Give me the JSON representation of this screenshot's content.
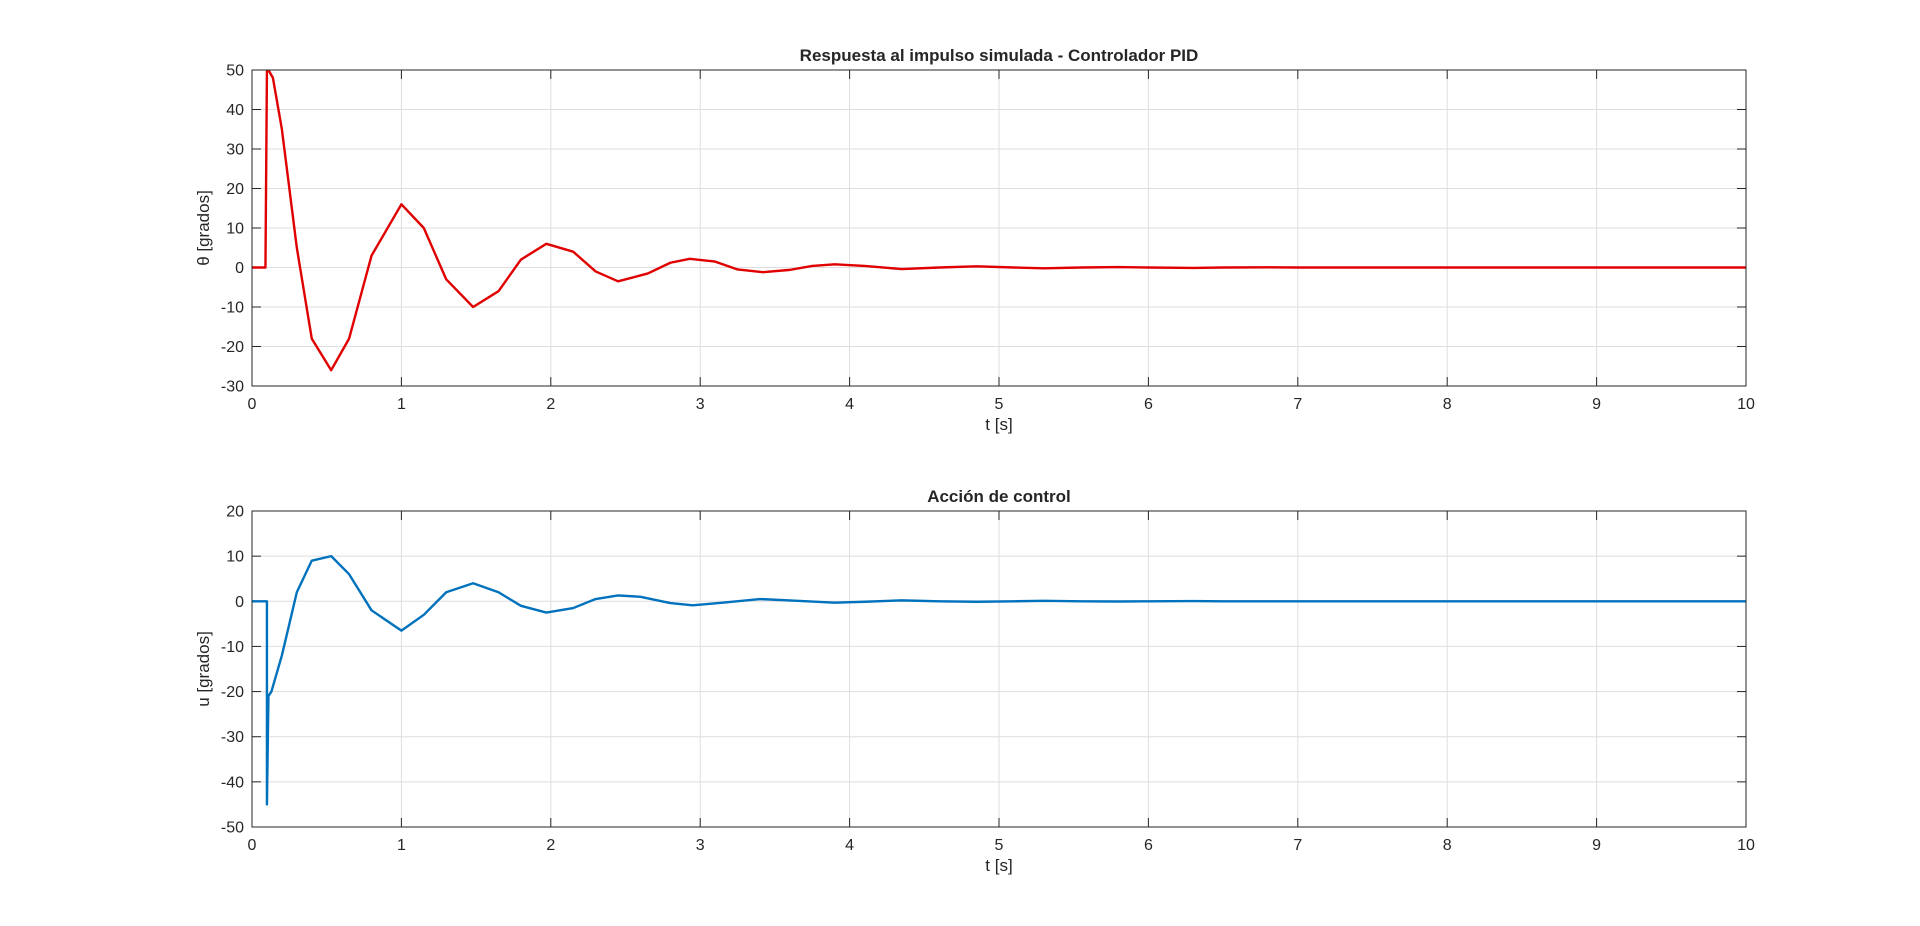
{
  "chart_data": [
    {
      "type": "line",
      "title": "Respuesta al impulso simulada - Controlador PID",
      "xlabel": "t [s]",
      "ylabel": "θ [grados]",
      "xlim": [
        0,
        10
      ],
      "ylim": [
        -30,
        50
      ],
      "xticks": [
        0,
        1,
        2,
        3,
        4,
        5,
        6,
        7,
        8,
        9,
        10
      ],
      "yticks": [
        -30,
        -20,
        -10,
        0,
        10,
        20,
        30,
        40,
        50
      ],
      "grid": true,
      "color": "#e00000",
      "series": [
        {
          "x": [
            0,
            0.09,
            0.1,
            0.11,
            0.14,
            0.2,
            0.3,
            0.4,
            0.53,
            0.65,
            0.8,
            1.0,
            1.15,
            1.3,
            1.48,
            1.65,
            1.8,
            1.97,
            2.15,
            2.3,
            2.45,
            2.65,
            2.8,
            2.93,
            3.1,
            3.25,
            3.42,
            3.6,
            3.75,
            3.9,
            4.1,
            4.35,
            4.6,
            4.85,
            5.1,
            5.3,
            5.55,
            5.8,
            6.0,
            6.3,
            6.5,
            6.8,
            7.0,
            7.5,
            8.0,
            9.0,
            10.0
          ],
          "y": [
            0,
            0,
            50,
            50,
            48,
            35,
            5,
            -18,
            -26,
            -18,
            3,
            16,
            10,
            -3,
            -10,
            -6,
            2,
            6,
            4,
            -1,
            -3.5,
            -1.5,
            1.2,
            2.2,
            1.5,
            -0.5,
            -1.2,
            -0.6,
            0.4,
            0.8,
            0.4,
            -0.4,
            0,
            0.3,
            0,
            -0.2,
            0,
            0.1,
            0,
            -0.1,
            0,
            0.05,
            0,
            0,
            0,
            0,
            0
          ]
        }
      ]
    },
    {
      "type": "line",
      "title": "Acción de control",
      "xlabel": "t [s]",
      "ylabel": "u [grados]",
      "xlim": [
        0,
        10
      ],
      "ylim": [
        -50,
        20
      ],
      "xticks": [
        0,
        1,
        2,
        3,
        4,
        5,
        6,
        7,
        8,
        9,
        10
      ],
      "yticks": [
        -50,
        -40,
        -30,
        -20,
        -10,
        0,
        10,
        20
      ],
      "grid": true,
      "color": "#0072bd",
      "series": [
        {
          "x": [
            0,
            0.09,
            0.1,
            0.1,
            0.11,
            0.13,
            0.2,
            0.3,
            0.4,
            0.53,
            0.65,
            0.8,
            1.0,
            1.15,
            1.3,
            1.48,
            1.65,
            1.8,
            1.97,
            2.15,
            2.3,
            2.45,
            2.6,
            2.8,
            2.95,
            3.15,
            3.4,
            3.65,
            3.9,
            4.1,
            4.35,
            4.6,
            4.85,
            5.1,
            5.3,
            5.55,
            5.8,
            6.0,
            6.3,
            6.5,
            6.8,
            7.0,
            7.5,
            8.0,
            9.0,
            10.0
          ],
          "y": [
            0,
            0,
            0,
            -45,
            -21,
            -20,
            -12,
            2,
            9,
            10,
            6,
            -2,
            -6.5,
            -3,
            2,
            4,
            2,
            -1,
            -2.5,
            -1.5,
            0.5,
            1.3,
            1,
            -0.4,
            -0.9,
            -0.3,
            0.5,
            0.1,
            -0.3,
            -0.1,
            0.2,
            0,
            -0.1,
            0,
            0.1,
            0,
            -0.05,
            0,
            0.05,
            0,
            0,
            0,
            0,
            0,
            0,
            0
          ]
        }
      ]
    }
  ]
}
